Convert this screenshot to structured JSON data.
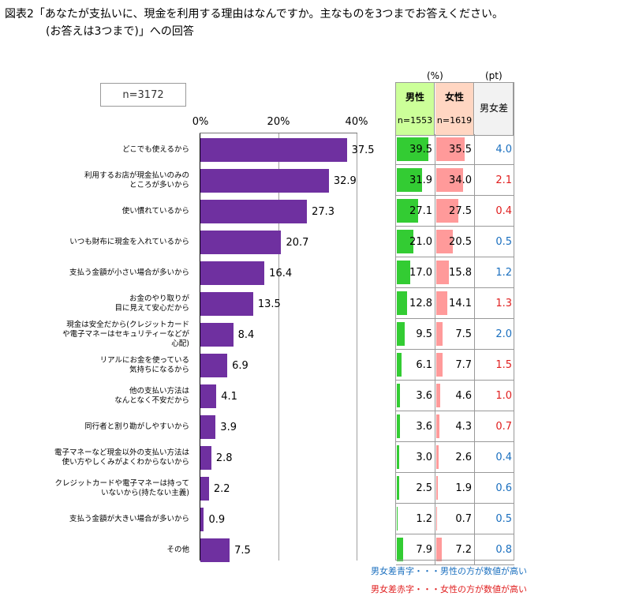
{
  "title": {
    "line1": "図表2「あなたが支払いに、現金を利用する理由はなんですか。主なものを3つまでお答えください。",
    "line2": "(お答えは3つまで)」への回答"
  },
  "sample_box": "n=3172",
  "table": {
    "unit_pct": "(%)",
    "unit_pt": "(pt)",
    "male_label": "男性",
    "male_n": "n=1553",
    "female_label": "女性",
    "female_n": "n=1619",
    "diff_label": "男女差"
  },
  "legend": {
    "blue": "男女差青字・・・男性の方が数値が高い",
    "red": "男女差赤字・・・女性の方が数値が高い"
  },
  "colors": {
    "bar": "#6f30a0",
    "male_bar": "#33cc33",
    "female_bar": "#ff9a9a",
    "male_header": "#ccff99",
    "female_header": "#ffd6c2",
    "diff_header": "#f2f2f2",
    "blue_text": "#1a6fbf",
    "red_text": "#e01e1e"
  },
  "chart_data": {
    "type": "bar",
    "orientation": "horizontal",
    "xlim": [
      0,
      40
    ],
    "xticks": [
      "0%",
      "20%",
      "40%"
    ],
    "categories": [
      [
        "どこでも使えるから"
      ],
      [
        "利用するお店が現金払いのみの",
        "ところが多いから"
      ],
      [
        "使い慣れているから"
      ],
      [
        "いつも財布に現金を入れているから"
      ],
      [
        "支払う金額が小さい場合が多いから"
      ],
      [
        "お金のやり取りが",
        "目に見えて安心だから"
      ],
      [
        "現金は安全だから(クレジットカード",
        "や電子マネーはセキュリティーなどが",
        "心配)"
      ],
      [
        "リアルにお金を使っている",
        "気持ちになるから"
      ],
      [
        "他の支払い方法は",
        "なんとなく不安だから"
      ],
      [
        "同行者と割り勘がしやすいから"
      ],
      [
        "電子マネーなど現金以外の支払い方法は",
        "使い方やしくみがよくわからないから"
      ],
      [
        "クレジットカードや電子マネーは持って",
        "いないから(持たない主義)"
      ],
      [
        "支払う金額が大きい場合が多いから"
      ],
      [
        "その他"
      ]
    ],
    "values": [
      37.5,
      32.9,
      27.3,
      20.7,
      16.4,
      13.5,
      8.4,
      6.9,
      4.1,
      3.9,
      2.8,
      2.2,
      0.9,
      7.5
    ],
    "series": [
      {
        "name": "男性",
        "values": [
          39.5,
          31.9,
          27.1,
          21.0,
          17.0,
          12.8,
          9.5,
          6.1,
          3.6,
          3.6,
          3.0,
          2.5,
          1.2,
          7.9
        ]
      },
      {
        "name": "女性",
        "values": [
          35.5,
          34.0,
          27.5,
          20.5,
          15.8,
          14.1,
          7.5,
          7.7,
          4.6,
          4.3,
          2.6,
          1.9,
          0.7,
          7.2
        ]
      }
    ],
    "diff": [
      {
        "value": "4.0",
        "higher": "male"
      },
      {
        "value": "2.1",
        "higher": "female"
      },
      {
        "value": "0.4",
        "higher": "female"
      },
      {
        "value": "0.5",
        "higher": "male"
      },
      {
        "value": "1.2",
        "higher": "male"
      },
      {
        "value": "1.3",
        "higher": "female"
      },
      {
        "value": "2.0",
        "higher": "male"
      },
      {
        "value": "1.5",
        "higher": "female"
      },
      {
        "value": "1.0",
        "higher": "female"
      },
      {
        "value": "0.7",
        "higher": "female"
      },
      {
        "value": "0.4",
        "higher": "male"
      },
      {
        "value": "0.6",
        "higher": "male"
      },
      {
        "value": "0.5",
        "higher": "male"
      },
      {
        "value": "0.8",
        "higher": "male"
      }
    ]
  }
}
